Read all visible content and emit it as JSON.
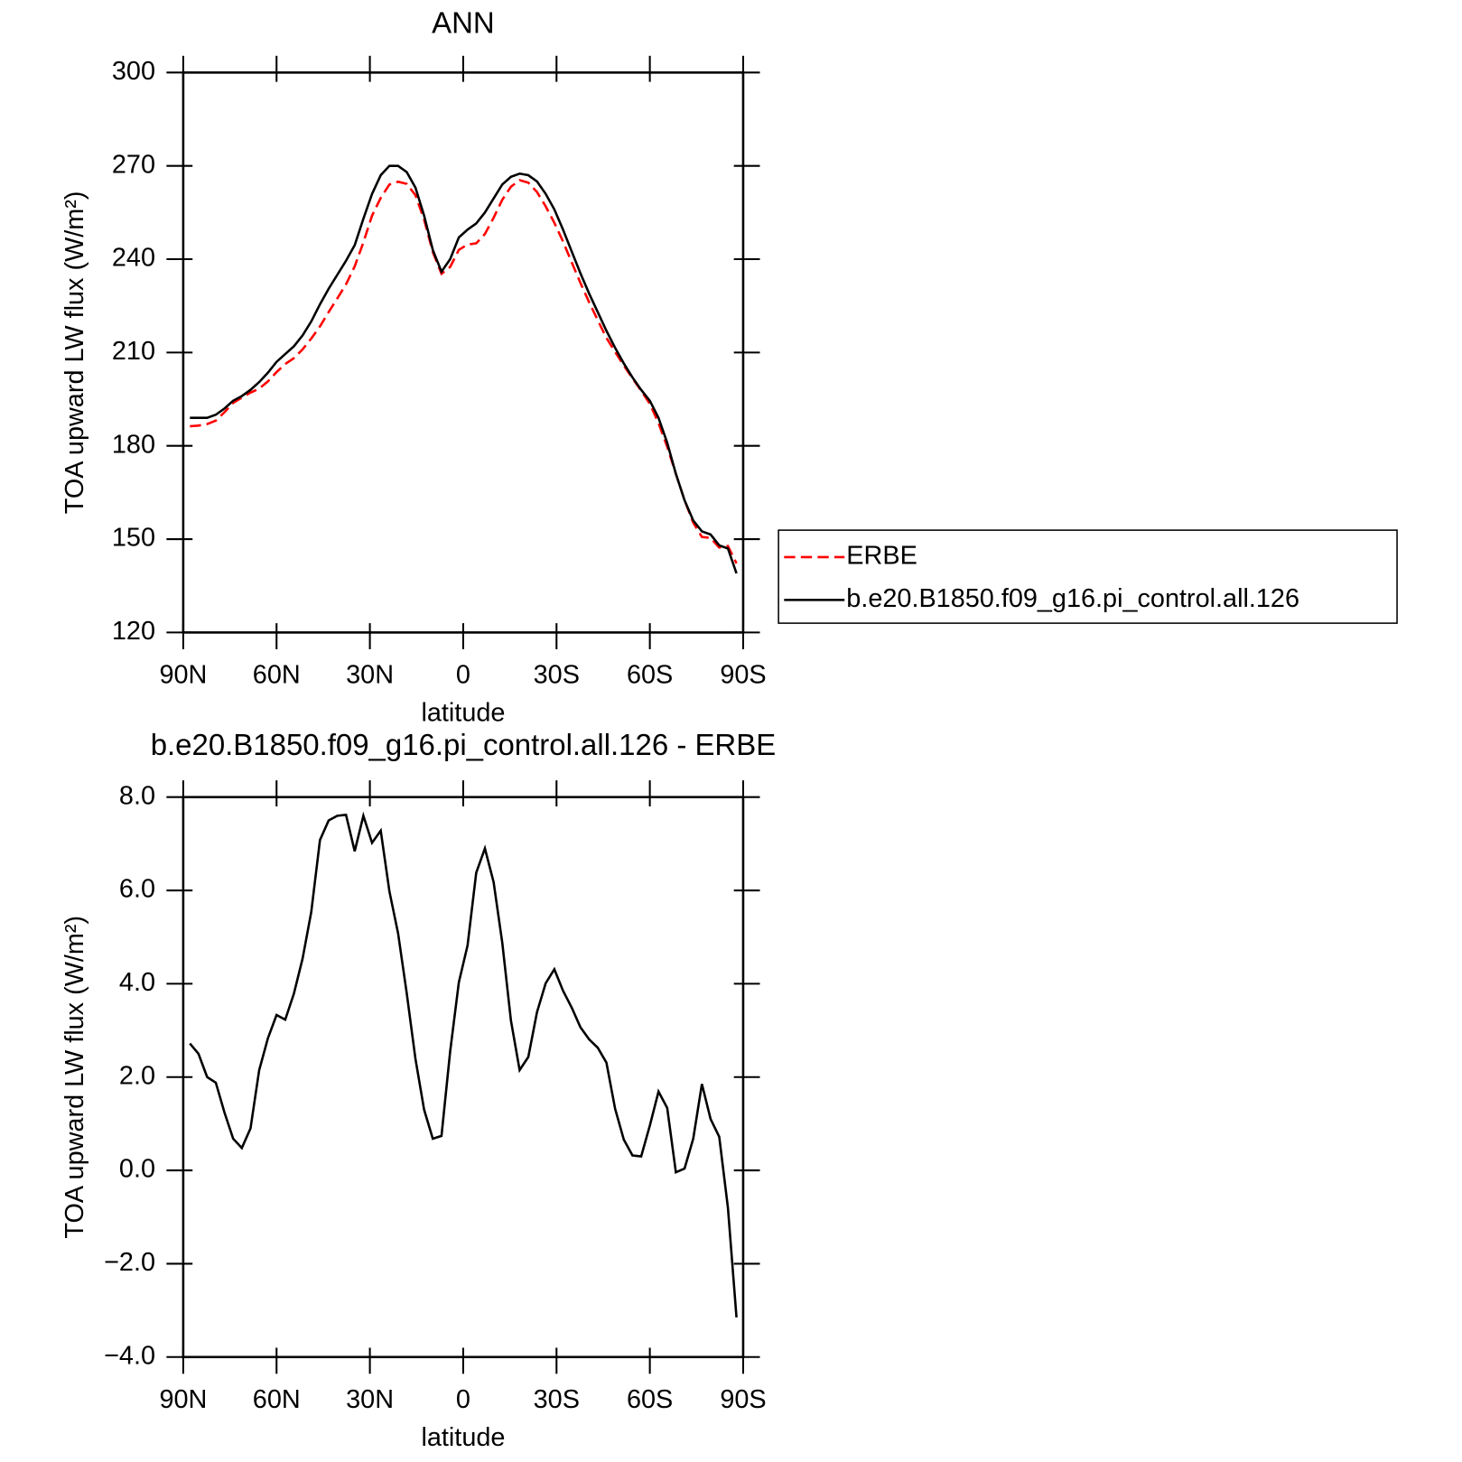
{
  "chart_data": [
    {
      "type": "line",
      "title": "ANN",
      "xlabel": "latitude",
      "ylabel": "TOA upward LW flux (W/m²)",
      "x": [
        87.86,
        85.1,
        82.31,
        79.53,
        76.74,
        73.95,
        71.16,
        68.37,
        65.58,
        62.79,
        60.0,
        57.21,
        54.42,
        51.63,
        48.84,
        46.04,
        43.25,
        40.46,
        37.67,
        34.88,
        32.09,
        29.3,
        26.51,
        23.72,
        20.93,
        18.14,
        15.35,
        12.56,
        9.77,
        6.98,
        4.19,
        1.4,
        -1.4,
        -4.19,
        -6.98,
        -9.77,
        -12.56,
        -15.35,
        -18.14,
        -20.93,
        -23.72,
        -26.51,
        -29.3,
        -32.09,
        -34.88,
        -37.67,
        -40.46,
        -43.25,
        -46.04,
        -48.84,
        -51.63,
        -54.42,
        -57.21,
        -60.0,
        -62.79,
        -65.58,
        -68.37,
        -71.16,
        -73.95,
        -76.74,
        -79.53,
        -82.31,
        -85.1,
        -87.86
      ],
      "xlim": [
        90,
        -90
      ],
      "xticks": [
        {
          "value": 90,
          "label": "90N"
        },
        {
          "value": 60,
          "label": "60N"
        },
        {
          "value": 30,
          "label": "30N"
        },
        0,
        {
          "value": -30,
          "label": "30S"
        },
        {
          "value": -60,
          "label": "60S"
        },
        {
          "value": -90,
          "label": "90S"
        }
      ],
      "ylim": [
        120,
        300
      ],
      "yticks": [
        120,
        150,
        180,
        210,
        240,
        270,
        300
      ],
      "legend": "right",
      "series": [
        {
          "name": "ERBE",
          "color": "#ff0000",
          "style": "dashed",
          "values": [
            186.3,
            186.5,
            187.0,
            188.1,
            190.8,
            193.8,
            195.5,
            197.1,
            198.4,
            200.7,
            203.7,
            206.3,
            208.2,
            211.0,
            214.5,
            218.4,
            223.0,
            227.4,
            231.9,
            237.7,
            245.4,
            254.0,
            259.7,
            264.0,
            264.9,
            264.2,
            260.6,
            252.7,
            242.3,
            235.3,
            237.5,
            243.0,
            244.7,
            245.1,
            248.1,
            253.3,
            259.1,
            263.3,
            265.4,
            264.6,
            261.6,
            257.0,
            251.7,
            245.7,
            239.0,
            232.4,
            226.2,
            220.4,
            214.7,
            210.2,
            205.8,
            201.7,
            197.7,
            193.5,
            187.3,
            179.7,
            171.0,
            162.5,
            155.3,
            150.7,
            150.4,
            147.3,
            147.8,
            142.2
          ]
        },
        {
          "name": "b.e20.B1850.f09_g16.pi_control.all.126",
          "color": "#000000",
          "style": "solid",
          "values": [
            189,
            189,
            189,
            190,
            192,
            194.5,
            196,
            198,
            200.5,
            203.5,
            207,
            209.5,
            212,
            215.5,
            220,
            225.5,
            230.5,
            235,
            239.5,
            244.5,
            253,
            261,
            267,
            270,
            270,
            268,
            263,
            254,
            243,
            236,
            240,
            247,
            249.5,
            251.5,
            255,
            259.5,
            264,
            266.5,
            267.5,
            267,
            265,
            261,
            256,
            249.5,
            242.5,
            235.5,
            229,
            223,
            217,
            211.5,
            206.5,
            202,
            198,
            194.5,
            189,
            181,
            171,
            162.5,
            156,
            152.5,
            151.5,
            148,
            147,
            139
          ]
        }
      ]
    },
    {
      "type": "line",
      "title": "b.e20.B1850.f09_g16.pi_control.all.126 - ERBE",
      "xlabel": "latitude",
      "ylabel": "TOA upward LW flux (W/m²)",
      "x": [
        87.86,
        85.1,
        82.31,
        79.53,
        76.74,
        73.95,
        71.16,
        68.37,
        65.58,
        62.79,
        60.0,
        57.21,
        54.42,
        51.63,
        48.84,
        46.04,
        43.25,
        40.46,
        37.67,
        34.88,
        32.09,
        29.3,
        26.51,
        23.72,
        20.93,
        18.14,
        15.35,
        12.56,
        9.77,
        6.98,
        4.19,
        1.4,
        -1.4,
        -4.19,
        -6.98,
        -9.77,
        -12.56,
        -15.35,
        -18.14,
        -20.93,
        -23.72,
        -26.51,
        -29.3,
        -32.09,
        -34.88,
        -37.67,
        -40.46,
        -43.25,
        -46.04,
        -48.84,
        -51.63,
        -54.42,
        -57.21,
        -60.0,
        -62.79,
        -65.58,
        -68.37,
        -71.16,
        -73.95,
        -76.74,
        -79.53,
        -82.31,
        -85.1,
        -87.86
      ],
      "xlim": [
        90,
        -90
      ],
      "xticks": [
        {
          "value": 90,
          "label": "90N"
        },
        {
          "value": 60,
          "label": "60N"
        },
        {
          "value": 30,
          "label": "30N"
        },
        0,
        {
          "value": -30,
          "label": "30S"
        },
        {
          "value": -60,
          "label": "60S"
        },
        {
          "value": -90,
          "label": "90S"
        }
      ],
      "ylim": [
        -4,
        8
      ],
      "yticks": [
        {
          "value": -4,
          "label": "−4.0"
        },
        {
          "value": -2,
          "label": "−2.0"
        },
        {
          "value": 0,
          "label": "0.0"
        },
        {
          "value": 2,
          "label": "2.0"
        },
        {
          "value": 4,
          "label": "4.0"
        },
        {
          "value": 6,
          "label": "6.0"
        },
        {
          "value": 8,
          "label": "8.0"
        }
      ],
      "color": "#000000",
      "values": [
        2.72,
        2.5,
        2.0,
        1.88,
        1.24,
        0.68,
        0.48,
        0.9,
        2.15,
        2.83,
        3.33,
        3.23,
        3.79,
        4.54,
        5.54,
        7.08,
        7.5,
        7.6,
        7.62,
        6.84,
        7.6,
        7.02,
        7.28,
        5.98,
        5.08,
        3.79,
        2.39,
        1.3,
        0.68,
        0.74,
        2.55,
        4.03,
        4.82,
        6.38,
        6.9,
        6.18,
        4.88,
        3.21,
        2.15,
        2.43,
        3.39,
        4.01,
        4.31,
        3.85,
        3.49,
        3.07,
        2.81,
        2.63,
        2.31,
        1.32,
        0.66,
        0.32,
        0.3,
        0.96,
        1.69,
        1.34,
        -0.04,
        0.04,
        0.68,
        1.85,
        1.1,
        0.72,
        -0.8,
        -3.15
      ]
    }
  ]
}
